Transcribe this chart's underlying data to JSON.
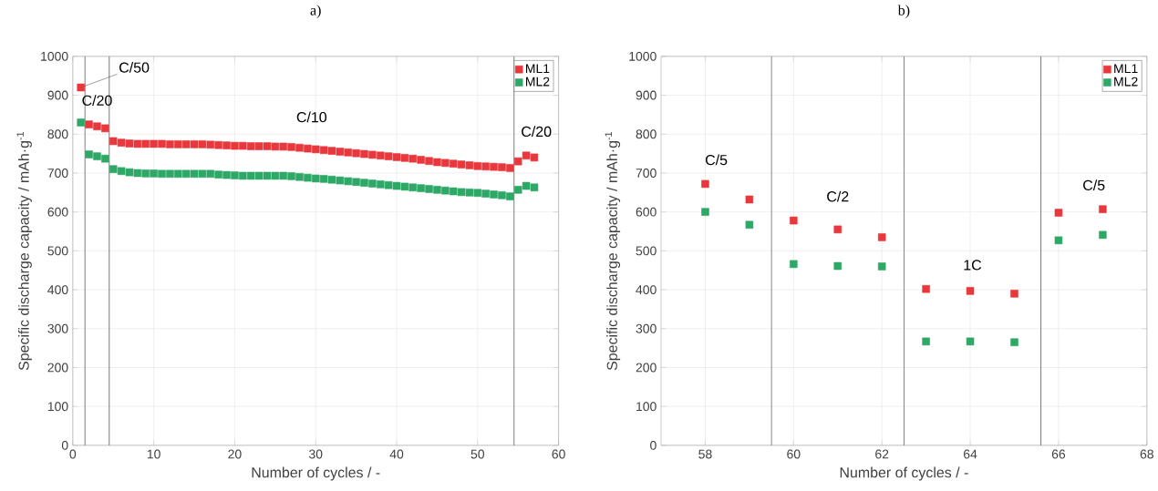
{
  "chart_data": [
    {
      "type": "scatter",
      "title": "a)",
      "xlabel": "Number of cycles / -",
      "ylabel": "Specific discharge capacity / mAh·g$^{-1}$",
      "xlim": [
        0,
        60
      ],
      "xticks": [
        0,
        10,
        20,
        30,
        40,
        50,
        60
      ],
      "ylim": [
        0,
        1000
      ],
      "yticks": [
        0,
        100,
        200,
        300,
        400,
        500,
        600,
        700,
        800,
        900,
        1000
      ],
      "grid": true,
      "legend": "top right",
      "marker": "square",
      "series": [
        {
          "name": "ML1",
          "color": "#e8383d",
          "x": [
            1,
            2,
            3,
            4,
            5,
            6,
            7,
            8,
            9,
            10,
            11,
            12,
            13,
            14,
            15,
            16,
            17,
            18,
            19,
            20,
            21,
            22,
            23,
            24,
            25,
            26,
            27,
            28,
            29,
            30,
            31,
            32,
            33,
            34,
            35,
            36,
            37,
            38,
            39,
            40,
            41,
            42,
            43,
            44,
            45,
            46,
            47,
            48,
            49,
            50,
            51,
            52,
            53,
            54,
            55,
            56,
            57
          ],
          "values": [
            920,
            825,
            820,
            815,
            782,
            778,
            776,
            775,
            775,
            775,
            775,
            774,
            774,
            774,
            774,
            774,
            773,
            772,
            771,
            770,
            770,
            769,
            769,
            769,
            768,
            768,
            767,
            765,
            763,
            761,
            759,
            757,
            755,
            753,
            751,
            749,
            747,
            745,
            743,
            741,
            739,
            737,
            734,
            731,
            728,
            726,
            724,
            722,
            720,
            718,
            717,
            716,
            715,
            713,
            730,
            745,
            740
          ]
        },
        {
          "name": "ML2",
          "color": "#2ea866",
          "x": [
            1,
            2,
            3,
            4,
            5,
            6,
            7,
            8,
            9,
            10,
            11,
            12,
            13,
            14,
            15,
            16,
            17,
            18,
            19,
            20,
            21,
            22,
            23,
            24,
            25,
            26,
            27,
            28,
            29,
            30,
            31,
            32,
            33,
            34,
            35,
            36,
            37,
            38,
            39,
            40,
            41,
            42,
            43,
            44,
            45,
            46,
            47,
            48,
            49,
            50,
            51,
            52,
            53,
            54,
            55,
            56,
            57
          ],
          "values": [
            830,
            748,
            743,
            737,
            710,
            705,
            702,
            700,
            699,
            699,
            698,
            698,
            698,
            698,
            698,
            698,
            698,
            696,
            695,
            694,
            693,
            693,
            693,
            693,
            693,
            693,
            692,
            690,
            688,
            686,
            685,
            683,
            681,
            679,
            677,
            675,
            673,
            671,
            669,
            667,
            665,
            663,
            661,
            659,
            657,
            655,
            653,
            651,
            650,
            649,
            647,
            645,
            643,
            640,
            657,
            667,
            663
          ]
        }
      ],
      "ref_lines": [
        {
          "axis": "x",
          "value": 1.5,
          "color": "#808080"
        },
        {
          "axis": "x",
          "value": 4.5,
          "color": "#808080"
        },
        {
          "axis": "x",
          "value": 54.5,
          "color": "#808080"
        }
      ],
      "annotations": [
        {
          "text": "C/50",
          "x": 1,
          "y": 920
        },
        "C/20",
        "C/10",
        "C/20"
      ]
    },
    {
      "type": "scatter",
      "title": "b)",
      "xlabel": "Number of cycles / -",
      "ylabel": "Specific discharge capacity / mAh·g$^{-1}$",
      "xlim": [
        57,
        68
      ],
      "xticks": [
        58,
        60,
        62,
        64,
        66,
        68
      ],
      "ylim": [
        0,
        1000
      ],
      "yticks": [
        0,
        100,
        200,
        300,
        400,
        500,
        600,
        700,
        800,
        900,
        1000
      ],
      "grid": true,
      "legend": "top right",
      "marker": "square",
      "series": [
        {
          "name": "ML1",
          "color": "#e8383d",
          "x": [
            58,
            59,
            60,
            61,
            62,
            63,
            64,
            65,
            66,
            67
          ],
          "values": [
            672,
            632,
            578,
            555,
            535,
            402,
            397,
            390,
            598,
            607
          ]
        },
        {
          "name": "ML2",
          "color": "#2ea866",
          "x": [
            58,
            59,
            60,
            61,
            62,
            63,
            64,
            65,
            66,
            67
          ],
          "values": [
            600,
            567,
            466,
            461,
            460,
            267,
            267,
            265,
            527,
            541
          ]
        }
      ],
      "ref_lines": [
        {
          "axis": "x",
          "value": 59.5,
          "color": "#808080"
        },
        {
          "axis": "x",
          "value": 62.5,
          "color": "#808080"
        },
        {
          "axis": "x",
          "value": 65.6,
          "color": "#808080"
        }
      ],
      "annotations": [
        "C/5",
        "C/2",
        "1C",
        "C/5"
      ]
    }
  ]
}
